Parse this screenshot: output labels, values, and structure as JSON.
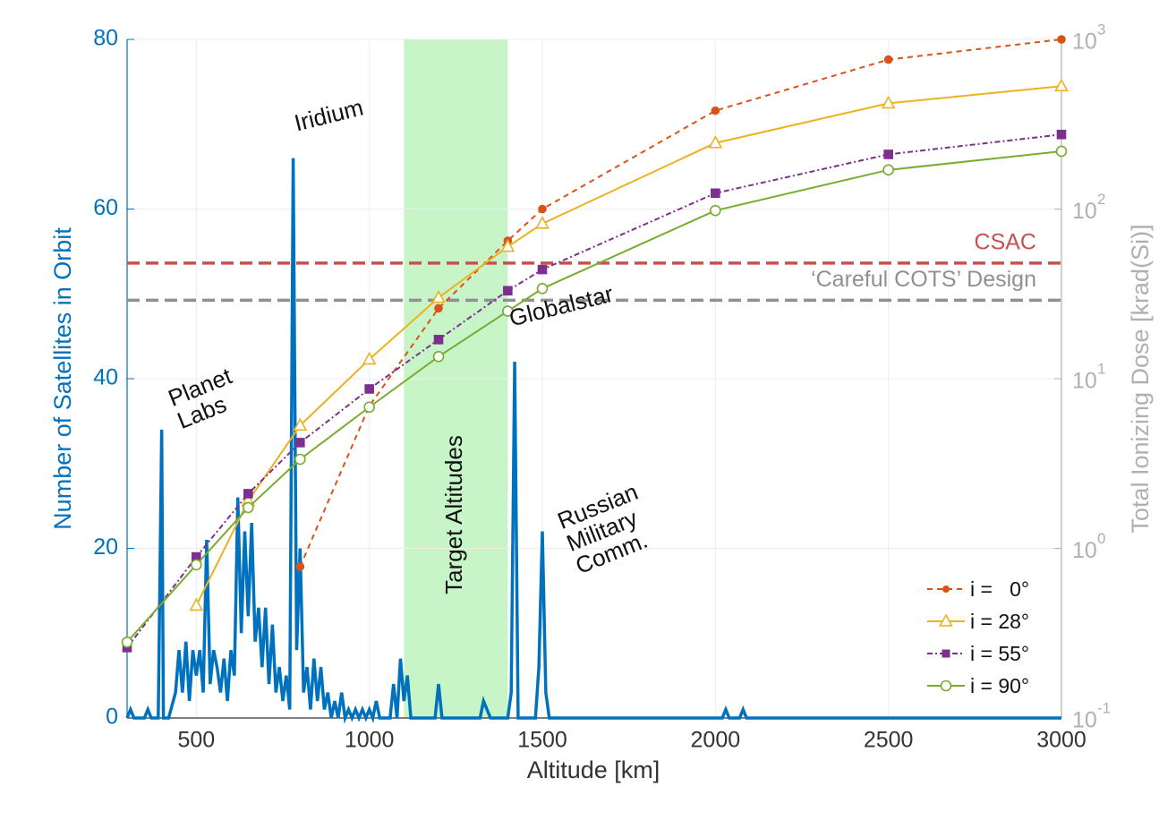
{
  "chart_data": {
    "type": "line",
    "xlabel": "Altitude [km]",
    "ylabel": "Number of Satellites in Orbit",
    "y2label": "Total Ionizing Dose [krad(Si)]",
    "xlim": [
      300,
      3000
    ],
    "xticks": [
      500,
      1000,
      1500,
      2000,
      2500,
      3000
    ],
    "ylim": [
      0,
      80
    ],
    "yticks": [
      0,
      20,
      40,
      60,
      80
    ],
    "y2lim": [
      0.1,
      1000
    ],
    "y2log": true,
    "y2ticks": [
      {
        "value": 0.1,
        "label": "10",
        "exponent": "-1"
      },
      {
        "value": 1,
        "label": "10",
        "exponent": "0"
      },
      {
        "value": 10,
        "label": "10",
        "exponent": "1"
      },
      {
        "value": 100,
        "label": "10",
        "exponent": "2"
      },
      {
        "value": 1000,
        "label": "10",
        "exponent": "3"
      }
    ],
    "grid": true,
    "legend": "lower right",
    "band": {
      "label": "Target Altitudes",
      "range": [
        1100,
        1400
      ],
      "color": "#c8f5c8"
    },
    "reference_lines": [
      {
        "name": "CSAC",
        "value": 48,
        "color": "#c85050"
      },
      {
        "name": "‘Careful COTS’ Design",
        "value": 29,
        "color": "#909090"
      }
    ],
    "annotations": [
      [
        "Planet",
        "Labs"
      ],
      [
        "Iridium"
      ],
      [
        "Globalstar"
      ],
      [
        "Russian",
        "Military",
        "Comm."
      ]
    ],
    "series": [
      {
        "color": "#0072BD",
        "marker": "none",
        "x": [
          300,
          310,
          320,
          350,
          360,
          370,
          390,
          400,
          405,
          420,
          440,
          450,
          460,
          470,
          480,
          490,
          500,
          510,
          520,
          530,
          540,
          550,
          560,
          570,
          580,
          590,
          600,
          610,
          620,
          630,
          640,
          650,
          660,
          670,
          680,
          690,
          700,
          710,
          720,
          730,
          740,
          750,
          760,
          770,
          780,
          790,
          800,
          810,
          820,
          830,
          840,
          850,
          860,
          870,
          880,
          890,
          900,
          910,
          920,
          930,
          940,
          950,
          960,
          970,
          980,
          990,
          1000,
          1010,
          1020,
          1030,
          1060,
          1070,
          1080,
          1090,
          1100,
          1110,
          1120,
          1190,
          1200,
          1210,
          1320,
          1330,
          1340,
          1350,
          1400,
          1410,
          1420,
          1430,
          1480,
          1490,
          1500,
          1510,
          1520,
          2020,
          2030,
          2040,
          2070,
          2080,
          2090,
          3000
        ],
        "values": [
          0,
          1,
          0,
          0,
          1,
          0,
          0,
          34,
          0,
          0,
          3,
          8,
          3,
          9,
          2,
          8,
          5,
          8,
          3,
          21,
          4,
          8,
          6,
          3,
          7,
          2,
          8,
          5,
          26,
          10,
          22,
          12,
          23,
          9,
          13,
          6,
          13,
          4,
          11,
          3,
          6,
          2,
          5,
          1,
          66,
          8,
          20,
          3,
          6,
          1,
          7,
          2,
          6,
          1,
          3,
          0,
          2,
          0,
          3,
          0,
          1,
          0,
          1,
          0,
          1,
          0,
          1,
          0,
          2,
          0,
          0,
          4,
          0,
          7,
          2,
          5,
          0,
          0,
          4,
          0,
          0,
          2,
          1,
          0,
          0,
          3,
          42,
          0,
          0,
          6,
          22,
          3,
          0,
          0,
          1,
          0,
          0,
          1,
          0,
          0
        ]
      },
      {
        "name": "i =   0°",
        "color": "#D95319",
        "axis": "y2",
        "dash": "6,5",
        "marker": "dot",
        "x": [
          800,
          1000,
          1200,
          1400,
          1500,
          2000,
          2500,
          3000
        ],
        "values": [
          0.78,
          6.9,
          26,
          65,
          100,
          380,
          760,
          1000
        ]
      },
      {
        "name": "i = 28°",
        "color": "#EDB120",
        "axis": "y2",
        "marker": "triangle",
        "x": [
          500,
          650,
          800,
          1000,
          1200,
          1400,
          1500,
          2000,
          2500,
          3000
        ],
        "values": [
          0.46,
          1.9,
          5.3,
          13,
          30,
          60,
          82,
          245,
          420,
          530
        ]
      },
      {
        "name": "i = 55°",
        "color": "#7E2F8E",
        "axis": "y2",
        "dash": "6,3,2,3",
        "marker": "square",
        "x": [
          300,
          500,
          650,
          800,
          1000,
          1200,
          1400,
          1500,
          2000,
          2500,
          3000
        ],
        "values": [
          0.26,
          0.89,
          2.1,
          4.2,
          8.7,
          17,
          33,
          44,
          124,
          210,
          275
        ]
      },
      {
        "name": "i = 90°",
        "color": "#77AC30",
        "axis": "y2",
        "marker": "circle",
        "x": [
          300,
          500,
          650,
          800,
          1000,
          1200,
          1400,
          1500,
          2000,
          2500,
          3000
        ],
        "values": [
          0.28,
          0.8,
          1.74,
          3.35,
          6.8,
          13.5,
          25,
          34,
          98,
          170,
          219
        ]
      }
    ]
  }
}
